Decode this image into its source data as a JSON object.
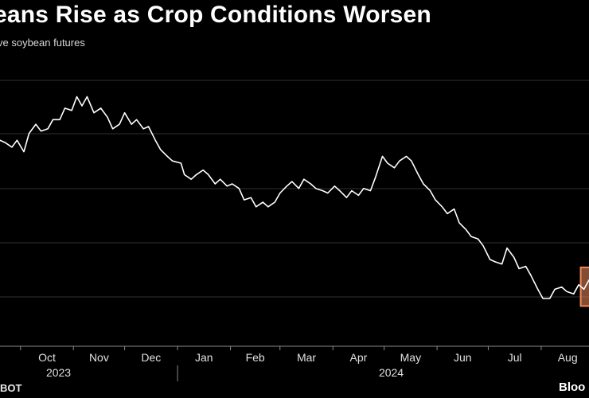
{
  "title": "eans Rise as Crop Conditions Worsen",
  "subtitle": "ve soybean futures",
  "source": "BOT",
  "brand": "Bloo",
  "colors": {
    "background": "#000000",
    "line": "#ffffff",
    "grid": "#2f2f2f",
    "highlight": "#f08a5d"
  },
  "chart_data": {
    "type": "line",
    "title": "eans Rise as Crop Conditions Worsen",
    "subtitle": "ve soybean futures",
    "xlabel": "",
    "ylabel": "",
    "grid": true,
    "x_range": [
      "2023-09-19",
      "2024-08-29"
    ],
    "y_range": [
      0,
      100
    ],
    "x_ticks": [
      "Oct",
      "Nov",
      "Dec",
      "Jan",
      "Feb",
      "Mar",
      "Apr",
      "May",
      "Jun",
      "Jul",
      "Aug"
    ],
    "year_labels": [
      "2023",
      "2024"
    ],
    "highlight": {
      "start": "2024-08-26",
      "end": "2024-08-29",
      "color": "#f08a5d"
    },
    "series": [
      {
        "values": [
          [
            "2023-09-19",
            77
          ],
          [
            "2023-09-22",
            76
          ],
          [
            "2023-09-26",
            74
          ],
          [
            "2023-09-29",
            77
          ],
          [
            "2023-10-03",
            72
          ],
          [
            "2023-10-06",
            80
          ],
          [
            "2023-10-10",
            84
          ],
          [
            "2023-10-13",
            81
          ],
          [
            "2023-10-17",
            82
          ],
          [
            "2023-10-20",
            86
          ],
          [
            "2023-10-24",
            86
          ],
          [
            "2023-10-27",
            91
          ],
          [
            "2023-10-31",
            90
          ],
          [
            "2023-11-03",
            96
          ],
          [
            "2023-11-06",
            92
          ],
          [
            "2023-11-09",
            96
          ],
          [
            "2023-11-13",
            89
          ],
          [
            "2023-11-17",
            91
          ],
          [
            "2023-11-21",
            87
          ],
          [
            "2023-11-24",
            82
          ],
          [
            "2023-11-28",
            84
          ],
          [
            "2023-12-01",
            89
          ],
          [
            "2023-12-05",
            84
          ],
          [
            "2023-12-08",
            86
          ],
          [
            "2023-12-12",
            82
          ],
          [
            "2023-12-15",
            83
          ],
          [
            "2023-12-19",
            77
          ],
          [
            "2023-12-22",
            73
          ],
          [
            "2023-12-26",
            70
          ],
          [
            "2023-12-29",
            68
          ],
          [
            "2024-01-03",
            67
          ],
          [
            "2024-01-05",
            62
          ],
          [
            "2024-01-09",
            60
          ],
          [
            "2024-01-12",
            62
          ],
          [
            "2024-01-16",
            64
          ],
          [
            "2024-01-19",
            62
          ],
          [
            "2024-01-23",
            58
          ],
          [
            "2024-01-26",
            60
          ],
          [
            "2024-01-30",
            57
          ],
          [
            "2024-02-02",
            58
          ],
          [
            "2024-02-06",
            56
          ],
          [
            "2024-02-09",
            51
          ],
          [
            "2024-02-13",
            52
          ],
          [
            "2024-02-16",
            48
          ],
          [
            "2024-02-20",
            50
          ],
          [
            "2024-02-23",
            48
          ],
          [
            "2024-02-27",
            50
          ],
          [
            "2024-03-01",
            54
          ],
          [
            "2024-03-05",
            57
          ],
          [
            "2024-03-08",
            59
          ],
          [
            "2024-03-12",
            56
          ],
          [
            "2024-03-15",
            60
          ],
          [
            "2024-03-19",
            58
          ],
          [
            "2024-03-22",
            56
          ],
          [
            "2024-03-26",
            55
          ],
          [
            "2024-03-29",
            54
          ],
          [
            "2024-04-02",
            57
          ],
          [
            "2024-04-05",
            55
          ],
          [
            "2024-04-09",
            52
          ],
          [
            "2024-04-12",
            55
          ],
          [
            "2024-04-16",
            53
          ],
          [
            "2024-04-19",
            56
          ],
          [
            "2024-04-23",
            55
          ],
          [
            "2024-04-26",
            61
          ],
          [
            "2024-04-30",
            70
          ],
          [
            "2024-05-03",
            67
          ],
          [
            "2024-05-07",
            65
          ],
          [
            "2024-05-10",
            68
          ],
          [
            "2024-05-14",
            70
          ],
          [
            "2024-05-17",
            68
          ],
          [
            "2024-05-21",
            62
          ],
          [
            "2024-05-24",
            58
          ],
          [
            "2024-05-28",
            55
          ],
          [
            "2024-05-31",
            51
          ],
          [
            "2024-06-04",
            48
          ],
          [
            "2024-06-07",
            45
          ],
          [
            "2024-06-11",
            47
          ],
          [
            "2024-06-14",
            41
          ],
          [
            "2024-06-18",
            38
          ],
          [
            "2024-06-21",
            35
          ],
          [
            "2024-06-25",
            34
          ],
          [
            "2024-06-28",
            31
          ],
          [
            "2024-07-02",
            25
          ],
          [
            "2024-07-05",
            24
          ],
          [
            "2024-07-09",
            23
          ],
          [
            "2024-07-12",
            30
          ],
          [
            "2024-07-16",
            26
          ],
          [
            "2024-07-19",
            21
          ],
          [
            "2024-07-23",
            22
          ],
          [
            "2024-07-26",
            18
          ],
          [
            "2024-07-30",
            12
          ],
          [
            "2024-08-02",
            8
          ],
          [
            "2024-08-06",
            8
          ],
          [
            "2024-08-09",
            12
          ],
          [
            "2024-08-13",
            13
          ],
          [
            "2024-08-16",
            11
          ],
          [
            "2024-08-20",
            10
          ],
          [
            "2024-08-23",
            14
          ],
          [
            "2024-08-26",
            12
          ],
          [
            "2024-08-29",
            16
          ]
        ]
      }
    ]
  }
}
